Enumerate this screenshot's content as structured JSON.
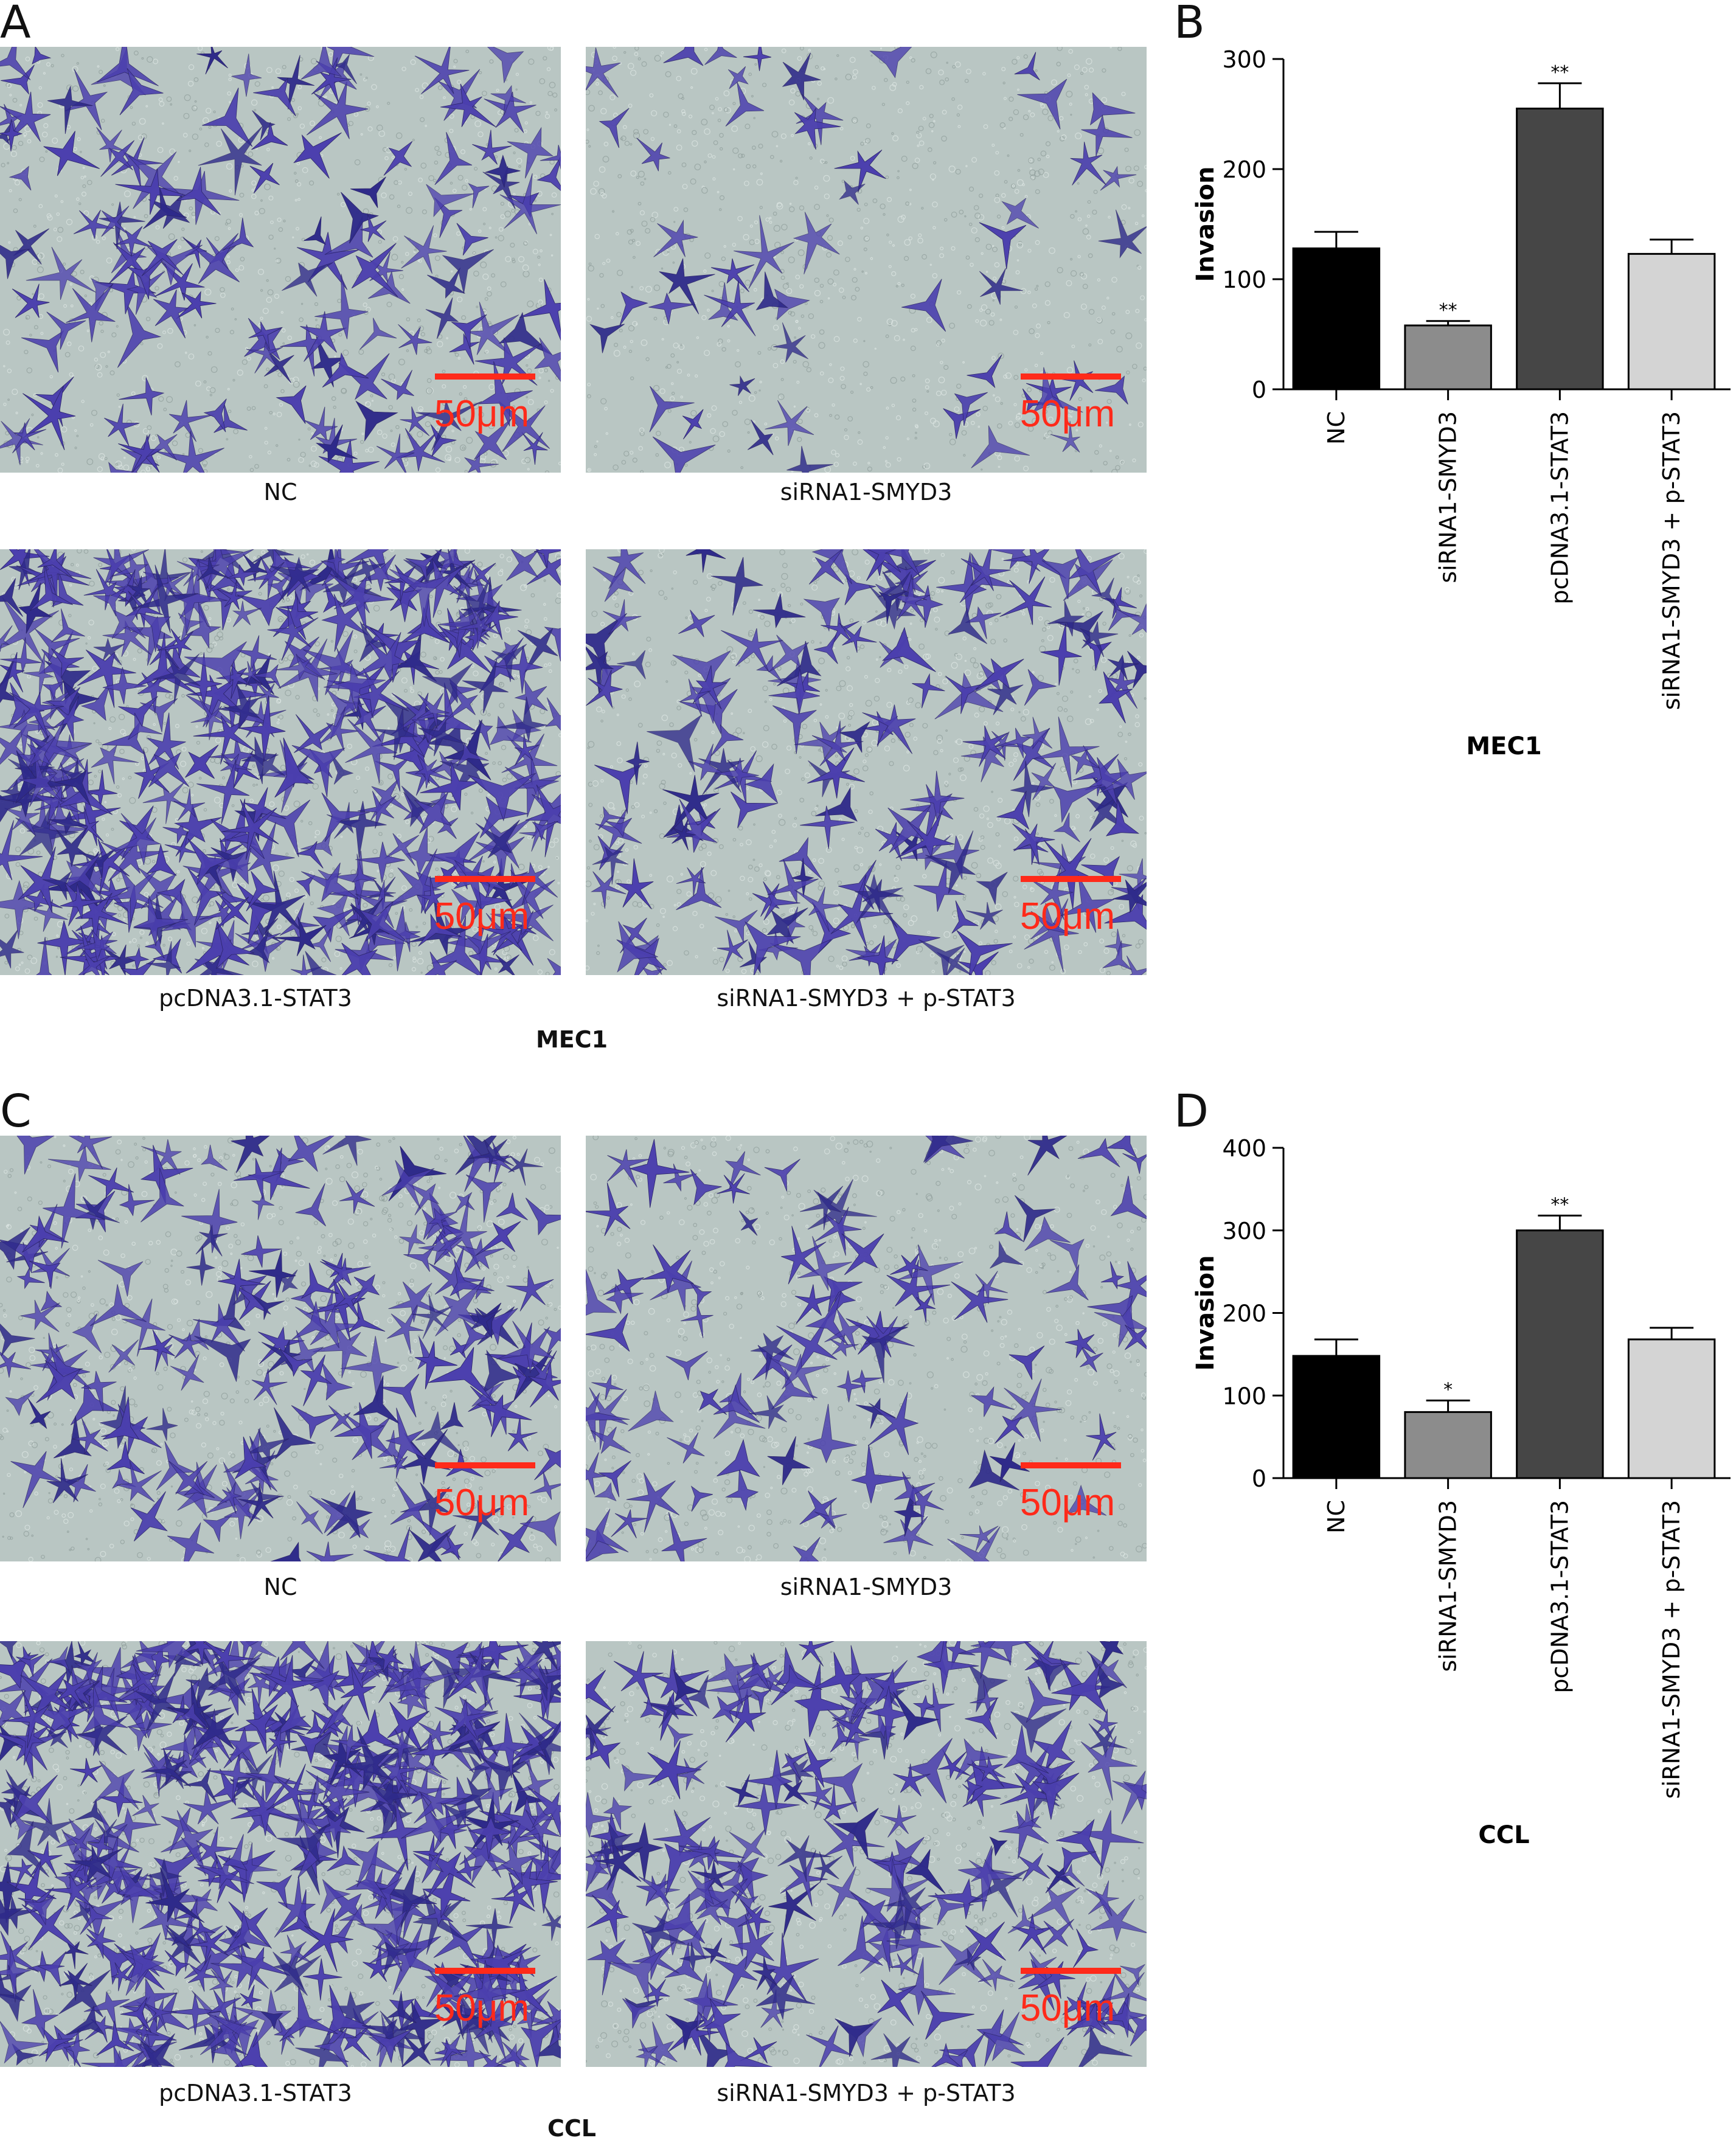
{
  "panels": {
    "A": {
      "letter": "A",
      "images": [
        {
          "caption": "NC",
          "scale": "50μm",
          "density": 150
        },
        {
          "caption": "siRNA1-SMYD3",
          "scale": "50μm",
          "density": 55
        },
        {
          "caption": "pcDNA3.1-STAT3",
          "scale": "50μm",
          "density": 420
        },
        {
          "caption": "siRNA1-SMYD3 + p-STAT3",
          "scale": "50μm",
          "density": 190
        }
      ],
      "group_label": "MEC1"
    },
    "C": {
      "letter": "C",
      "images": [
        {
          "caption": "NC",
          "scale": "50μm",
          "density": 200
        },
        {
          "caption": "siRNA1-SMYD3",
          "scale": "50μm",
          "density": 110
        },
        {
          "caption": "pcDNA3.1-STAT3",
          "scale": "50μm",
          "density": 460
        },
        {
          "caption": "siRNA1-SMYD3 + p-STAT3",
          "scale": "50μm",
          "density": 230
        }
      ],
      "group_label": "CCL"
    },
    "B": {
      "letter": "B"
    },
    "D": {
      "letter": "D"
    }
  },
  "colors": {
    "bar_fills": [
      "#000000",
      "#8c8c8c",
      "#464646",
      "#d4d4d4"
    ],
    "cell_stain": "#4b3fae",
    "cell_stain_dark": "#2e2a8a",
    "background_field": "#b9c6c3",
    "scale_bar": "#ff2a1a"
  },
  "chart_data": [
    {
      "type": "bar",
      "categories": [
        "NC",
        "siRNA1-SMYD3",
        "pcDNA3.1-STAT3",
        "siRNA1-SMYD3 + p-STAT3"
      ],
      "values": [
        128,
        58,
        255,
        123
      ],
      "errors": [
        15,
        4,
        23,
        13
      ],
      "significance": [
        "",
        "**",
        "**",
        ""
      ],
      "ylabel": "Invasion",
      "xlabel": "MEC1",
      "ylim": [
        0,
        300
      ],
      "yticks": [
        0,
        100,
        200,
        300
      ]
    },
    {
      "type": "bar",
      "categories": [
        "NC",
        "siRNA1-SMYD3",
        "pcDNA3.1-STAT3",
        "siRNA1-SMYD3 + p-STAT3"
      ],
      "values": [
        148,
        80,
        300,
        168
      ],
      "errors": [
        20,
        14,
        18,
        14
      ],
      "significance": [
        "",
        "*",
        "**",
        ""
      ],
      "ylabel": "Invasion",
      "xlabel": "CCL",
      "ylim": [
        0,
        400
      ],
      "yticks": [
        0,
        100,
        200,
        300,
        400
      ]
    }
  ]
}
